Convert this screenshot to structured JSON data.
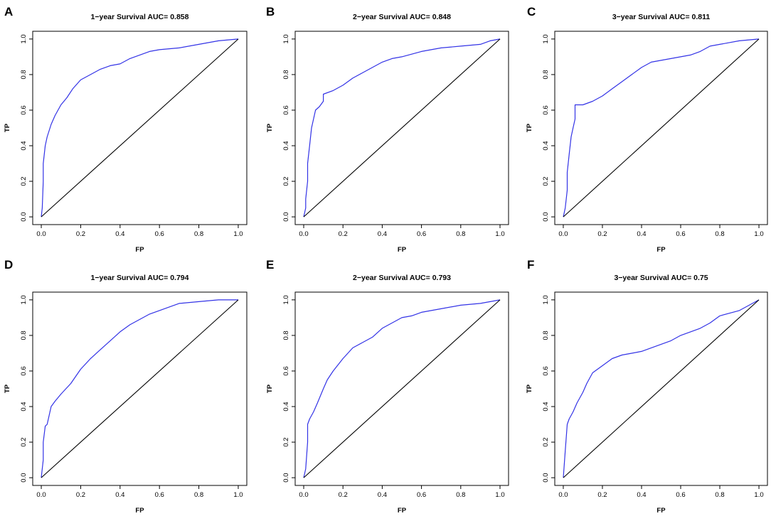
{
  "chart_data": [
    {
      "panel": "A",
      "type": "line",
      "title": "1−year Survival AUC= 0.858",
      "xlabel": "FP",
      "ylabel": "TP",
      "xlim": [
        0,
        1
      ],
      "ylim": [
        0,
        1
      ],
      "xticks": [
        "0.0",
        "0.2",
        "0.4",
        "0.6",
        "0.8",
        "1.0"
      ],
      "yticks": [
        "0.0",
        "0.2",
        "0.4",
        "0.6",
        "0.8",
        "1.0"
      ],
      "series": [
        {
          "name": "ROC",
          "color": "#3333e6",
          "x": [
            0,
            0.005,
            0.01,
            0.01,
            0.02,
            0.03,
            0.05,
            0.07,
            0.1,
            0.13,
            0.16,
            0.2,
            0.25,
            0.3,
            0.35,
            0.4,
            0.45,
            0.5,
            0.55,
            0.6,
            0.7,
            0.8,
            0.85,
            0.9,
            0.95,
            1.0
          ],
          "y": [
            0,
            0.05,
            0.2,
            0.3,
            0.4,
            0.45,
            0.52,
            0.57,
            0.63,
            0.67,
            0.72,
            0.77,
            0.8,
            0.83,
            0.85,
            0.86,
            0.89,
            0.91,
            0.93,
            0.94,
            0.95,
            0.97,
            0.98,
            0.99,
            0.995,
            1.0
          ]
        },
        {
          "name": "reference",
          "color": "#000000",
          "x": [
            0,
            1
          ],
          "y": [
            0,
            1
          ]
        }
      ]
    },
    {
      "panel": "B",
      "type": "line",
      "title": "2−year Survival AUC= 0.848",
      "xlabel": "FP",
      "ylabel": "TP",
      "xlim": [
        0,
        1
      ],
      "ylim": [
        0,
        1
      ],
      "xticks": [
        "0.0",
        "0.2",
        "0.4",
        "0.6",
        "0.8",
        "1.0"
      ],
      "yticks": [
        "0.0",
        "0.2",
        "0.4",
        "0.6",
        "0.8",
        "1.0"
      ],
      "series": [
        {
          "name": "ROC",
          "color": "#3333e6",
          "x": [
            0,
            0.01,
            0.01,
            0.02,
            0.02,
            0.03,
            0.04,
            0.05,
            0.06,
            0.08,
            0.1,
            0.1,
            0.15,
            0.2,
            0.25,
            0.3,
            0.35,
            0.4,
            0.45,
            0.5,
            0.6,
            0.7,
            0.8,
            0.9,
            0.95,
            1.0
          ],
          "y": [
            0,
            0.05,
            0.1,
            0.2,
            0.3,
            0.4,
            0.5,
            0.55,
            0.6,
            0.62,
            0.65,
            0.69,
            0.71,
            0.74,
            0.78,
            0.81,
            0.84,
            0.87,
            0.89,
            0.9,
            0.93,
            0.95,
            0.96,
            0.97,
            0.99,
            1.0
          ]
        },
        {
          "name": "reference",
          "color": "#000000",
          "x": [
            0,
            1
          ],
          "y": [
            0,
            1
          ]
        }
      ]
    },
    {
      "panel": "C",
      "type": "line",
      "title": "3−year Survival AUC= 0.811",
      "xlabel": "FP",
      "ylabel": "TP",
      "xlim": [
        0,
        1
      ],
      "ylim": [
        0,
        1
      ],
      "xticks": [
        "0.0",
        "0.2",
        "0.4",
        "0.6",
        "0.8",
        "1.0"
      ],
      "yticks": [
        "0.0",
        "0.2",
        "0.4",
        "0.6",
        "0.8",
        "1.0"
      ],
      "series": [
        {
          "name": "ROC",
          "color": "#3333e6",
          "x": [
            0,
            0.01,
            0.02,
            0.02,
            0.03,
            0.04,
            0.05,
            0.06,
            0.06,
            0.08,
            0.1,
            0.15,
            0.2,
            0.25,
            0.3,
            0.35,
            0.4,
            0.45,
            0.5,
            0.55,
            0.65,
            0.7,
            0.75,
            0.8,
            0.9,
            1.0
          ],
          "y": [
            0,
            0.05,
            0.15,
            0.25,
            0.35,
            0.45,
            0.5,
            0.55,
            0.63,
            0.63,
            0.63,
            0.65,
            0.68,
            0.72,
            0.76,
            0.8,
            0.84,
            0.87,
            0.88,
            0.89,
            0.91,
            0.93,
            0.96,
            0.97,
            0.99,
            1.0
          ]
        },
        {
          "name": "reference",
          "color": "#000000",
          "x": [
            0,
            1
          ],
          "y": [
            0,
            1
          ]
        }
      ]
    },
    {
      "panel": "D",
      "type": "line",
      "title": "1−year Survival AUC= 0.794",
      "xlabel": "FP",
      "ylabel": "TP",
      "xlim": [
        0,
        1
      ],
      "ylim": [
        0,
        1
      ],
      "xticks": [
        "0.0",
        "0.2",
        "0.4",
        "0.6",
        "0.8",
        "1.0"
      ],
      "yticks": [
        "0.0",
        "0.2",
        "0.4",
        "0.6",
        "0.8",
        "1.0"
      ],
      "series": [
        {
          "name": "ROC",
          "color": "#3333e6",
          "x": [
            0,
            0.01,
            0.01,
            0.02,
            0.03,
            0.05,
            0.07,
            0.1,
            0.15,
            0.2,
            0.25,
            0.3,
            0.35,
            0.4,
            0.45,
            0.5,
            0.55,
            0.6,
            0.65,
            0.7,
            0.8,
            0.9,
            1.0
          ],
          "y": [
            0,
            0.1,
            0.2,
            0.29,
            0.3,
            0.4,
            0.43,
            0.47,
            0.53,
            0.61,
            0.67,
            0.72,
            0.77,
            0.82,
            0.86,
            0.89,
            0.92,
            0.94,
            0.96,
            0.98,
            0.99,
            1.0,
            1.0
          ]
        },
        {
          "name": "reference",
          "color": "#000000",
          "x": [
            0,
            1
          ],
          "y": [
            0,
            1
          ]
        }
      ]
    },
    {
      "panel": "E",
      "type": "line",
      "title": "2−year Survival AUC= 0.793",
      "xlabel": "FP",
      "ylabel": "TP",
      "xlim": [
        0,
        1
      ],
      "ylim": [
        0,
        1
      ],
      "xticks": [
        "0.0",
        "0.2",
        "0.4",
        "0.6",
        "0.8",
        "1.0"
      ],
      "yticks": [
        "0.0",
        "0.2",
        "0.4",
        "0.6",
        "0.8",
        "1.0"
      ],
      "series": [
        {
          "name": "ROC",
          "color": "#3333e6",
          "x": [
            0,
            0.01,
            0.02,
            0.02,
            0.03,
            0.05,
            0.07,
            0.1,
            0.12,
            0.15,
            0.2,
            0.25,
            0.3,
            0.35,
            0.4,
            0.45,
            0.5,
            0.55,
            0.6,
            0.7,
            0.8,
            0.9,
            1.0
          ],
          "y": [
            0,
            0.05,
            0.2,
            0.3,
            0.33,
            0.37,
            0.42,
            0.5,
            0.55,
            0.6,
            0.67,
            0.73,
            0.76,
            0.79,
            0.84,
            0.87,
            0.9,
            0.91,
            0.93,
            0.95,
            0.97,
            0.98,
            1.0
          ]
        },
        {
          "name": "reference",
          "color": "#000000",
          "x": [
            0,
            1
          ],
          "y": [
            0,
            1
          ]
        }
      ]
    },
    {
      "panel": "F",
      "type": "line",
      "title": "3−year Survival AUC= 0.75",
      "xlabel": "FP",
      "ylabel": "TP",
      "xlim": [
        0,
        1
      ],
      "ylim": [
        0,
        1
      ],
      "xticks": [
        "0.0",
        "0.2",
        "0.4",
        "0.6",
        "0.8",
        "1.0"
      ],
      "yticks": [
        "0.0",
        "0.2",
        "0.4",
        "0.6",
        "0.8",
        "1.0"
      ],
      "series": [
        {
          "name": "ROC",
          "color": "#3333e6",
          "x": [
            0,
            0.01,
            0.02,
            0.03,
            0.05,
            0.07,
            0.1,
            0.12,
            0.15,
            0.2,
            0.25,
            0.3,
            0.35,
            0.4,
            0.45,
            0.5,
            0.55,
            0.6,
            0.65,
            0.7,
            0.75,
            0.8,
            0.9,
            0.95,
            1.0
          ],
          "y": [
            0,
            0.15,
            0.3,
            0.33,
            0.37,
            0.42,
            0.48,
            0.53,
            0.59,
            0.63,
            0.67,
            0.69,
            0.7,
            0.71,
            0.73,
            0.75,
            0.77,
            0.8,
            0.82,
            0.84,
            0.87,
            0.91,
            0.94,
            0.97,
            1.0
          ]
        },
        {
          "name": "reference",
          "color": "#000000",
          "x": [
            0,
            1
          ],
          "y": [
            0,
            1
          ]
        }
      ]
    }
  ]
}
